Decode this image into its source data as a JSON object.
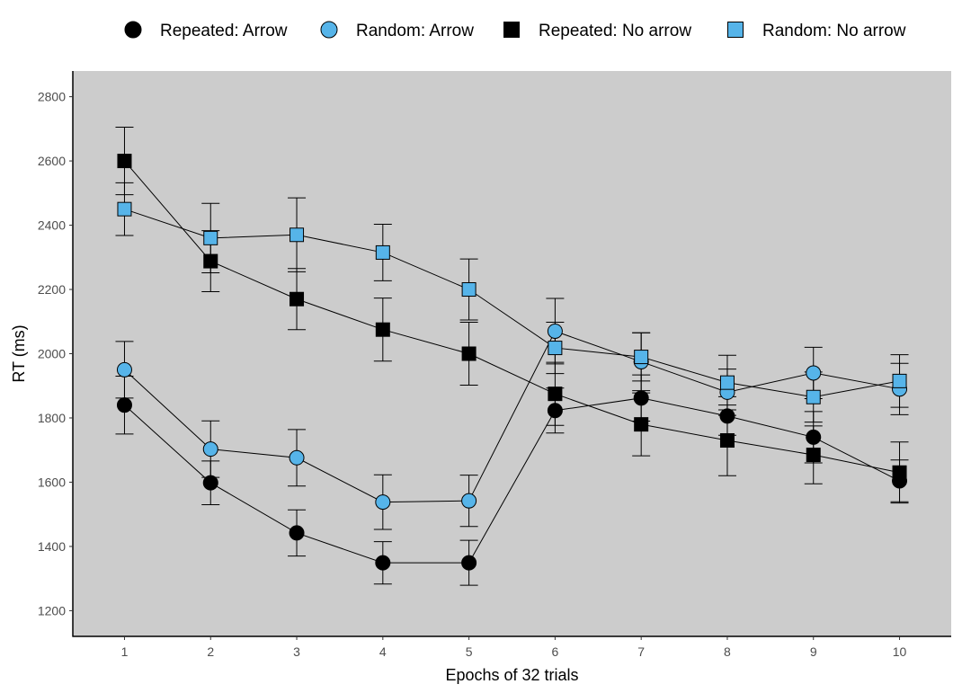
{
  "chart_data": {
    "type": "line",
    "xlabel": "Epochs of 32 trials",
    "ylabel": "RT (ms)",
    "x": [
      1,
      2,
      3,
      4,
      5,
      6,
      7,
      8,
      9,
      10
    ],
    "x_ticks": [
      "1",
      "2",
      "3",
      "4",
      "5",
      "6",
      "7",
      "8",
      "9",
      "10"
    ],
    "ylim": [
      1120,
      2880
    ],
    "y_ticks": [
      1200,
      1400,
      1600,
      1800,
      2000,
      2200,
      2400,
      2600,
      2800
    ],
    "grid": false,
    "background": "#cccccc",
    "legend_position": "top",
    "error_bars": true,
    "series": [
      {
        "name": "Repeated: Arrow",
        "marker": "circle",
        "color": "#000000",
        "values": [
          1840,
          1598,
          1442,
          1349,
          1349,
          1823,
          1862,
          1806,
          1740,
          1604
        ],
        "error": [
          90,
          68,
          72,
          66,
          70,
          70,
          72,
          60,
          80,
          65
        ]
      },
      {
        "name": "Random: Arrow",
        "marker": "circle",
        "color": "#56b4e9",
        "values": [
          1950,
          1703,
          1676,
          1538,
          1542,
          2070,
          1975,
          1880,
          1940,
          1890
        ],
        "error": [
          88,
          88,
          88,
          85,
          80,
          102,
          90,
          72,
          80,
          80
        ]
      },
      {
        "name": "Repeated: No arrow",
        "marker": "square",
        "color": "#000000",
        "values": [
          2600,
          2288,
          2170,
          2075,
          2000,
          1875,
          1780,
          1730,
          1685,
          1630
        ],
        "error": [
          105,
          95,
          95,
          98,
          98,
          98,
          98,
          110,
          90,
          95
        ]
      },
      {
        "name": "Random: No arrow",
        "marker": "square",
        "color": "#56b4e9",
        "values": [
          2450,
          2360,
          2370,
          2315,
          2200,
          2018,
          1990,
          1910,
          1865,
          1915
        ],
        "error": [
          82,
          108,
          115,
          88,
          95,
          80,
          75,
          85,
          78,
          82
        ]
      }
    ]
  }
}
